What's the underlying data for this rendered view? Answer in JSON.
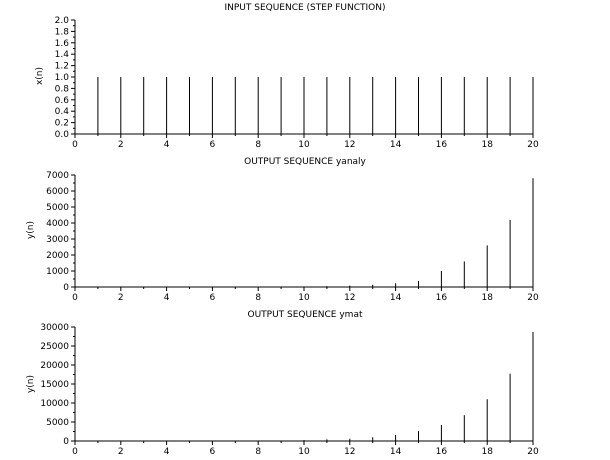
{
  "chart_data": [
    {
      "type": "stem",
      "title": "INPUT SEQUENCE (STEP FUNCTION)",
      "xlabel": "",
      "ylabel": "x(n)",
      "xlim": [
        0,
        20
      ],
      "ylim": [
        0,
        2
      ],
      "x_ticks": [
        "0",
        "2",
        "4",
        "6",
        "8",
        "10",
        "12",
        "14",
        "16",
        "18",
        "20"
      ],
      "y_ticks": [
        "0.0",
        "0.2",
        "0.4",
        "0.6",
        "0.8",
        "1.0",
        "1.2",
        "1.4",
        "1.6",
        "1.8",
        "2.0"
      ],
      "x": [
        0,
        1,
        2,
        3,
        4,
        5,
        6,
        7,
        8,
        9,
        10,
        11,
        12,
        13,
        14,
        15,
        16,
        17,
        18,
        19,
        20
      ],
      "values": [
        0,
        1,
        1,
        1,
        1,
        1,
        1,
        1,
        1,
        1,
        1,
        1,
        1,
        1,
        1,
        1,
        1,
        1,
        1,
        1,
        1
      ]
    },
    {
      "type": "stem",
      "title": "OUTPUT SEQUENCE yanaly",
      "xlabel": "",
      "ylabel": "y(n)",
      "xlim": [
        0,
        20
      ],
      "ylim": [
        0,
        7000
      ],
      "x_ticks": [
        "0",
        "2",
        "4",
        "6",
        "8",
        "10",
        "12",
        "14",
        "16",
        "18",
        "20"
      ],
      "y_ticks": [
        "0",
        "1000",
        "2000",
        "3000",
        "4000",
        "5000",
        "6000",
        "7000"
      ],
      "x": [
        0,
        1,
        2,
        3,
        4,
        5,
        6,
        7,
        8,
        9,
        10,
        11,
        12,
        13,
        14,
        15,
        16,
        17,
        18,
        19,
        20
      ],
      "values": [
        0,
        0,
        0,
        0,
        1,
        2,
        4,
        7,
        12,
        20,
        33,
        54,
        88,
        143,
        232,
        376,
        1000,
        1600,
        2600,
        4200,
        6800
      ]
    },
    {
      "type": "stem",
      "title": "OUTPUT SEQUENCE ymat",
      "xlabel": "",
      "ylabel": "y(n)",
      "xlim": [
        0,
        20
      ],
      "ylim": [
        0,
        30000
      ],
      "x_ticks": [
        "0",
        "2",
        "4",
        "6",
        "8",
        "10",
        "12",
        "14",
        "16",
        "18",
        "20"
      ],
      "y_ticks": [
        "0",
        "5000",
        "10000",
        "15000",
        "20000",
        "25000",
        "30000"
      ],
      "x": [
        0,
        1,
        2,
        3,
        4,
        5,
        6,
        7,
        8,
        9,
        10,
        11,
        12,
        13,
        14,
        15,
        16,
        17,
        18,
        19,
        20
      ],
      "values": [
        0,
        0,
        1,
        2,
        4,
        8,
        15,
        28,
        55,
        110,
        220,
        440,
        600,
        1000,
        1600,
        2600,
        4200,
        6800,
        11000,
        17700,
        28700
      ]
    }
  ]
}
